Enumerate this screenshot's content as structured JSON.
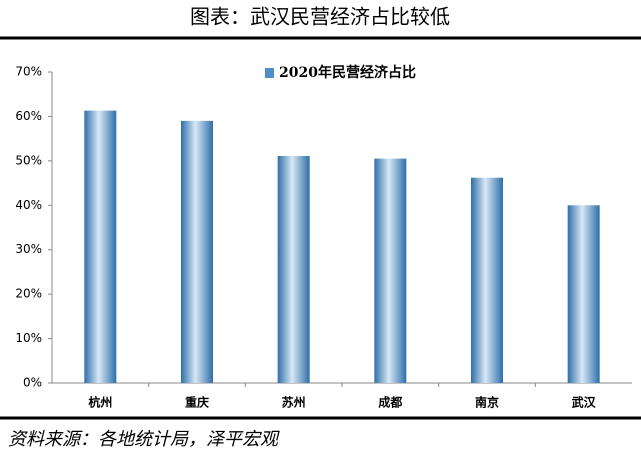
{
  "chart_data": {
    "type": "bar",
    "title": "图表：武汉民营经济占比较低",
    "categories": [
      "杭州",
      "重庆",
      "苏州",
      "成都",
      "南京",
      "武汉"
    ],
    "series": [
      {
        "name": "2020年民营经济占比",
        "color": "#4f8fc8",
        "values": [
          61.3,
          59.0,
          51.1,
          50.5,
          46.2,
          40.0
        ]
      }
    ],
    "ylim": [
      0,
      70
    ],
    "yticks": [
      {
        "value": 0,
        "label": "0%"
      },
      {
        "value": 10,
        "label": "10%"
      },
      {
        "value": 20,
        "label": "20%"
      },
      {
        "value": 30,
        "label": "30%"
      },
      {
        "value": 40,
        "label": "40%"
      },
      {
        "value": 50,
        "label": "50%"
      },
      {
        "value": 60,
        "label": "60%"
      },
      {
        "value": 70,
        "label": "70%"
      }
    ],
    "source": "资料来源：各地统计局，泽平宏观"
  }
}
